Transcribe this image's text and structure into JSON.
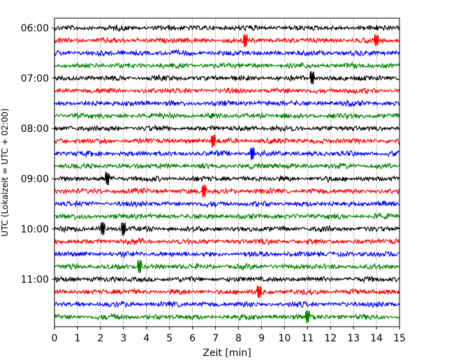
{
  "chart_data": {
    "type": "line",
    "title": "",
    "xlabel": "Zeit  [min]",
    "ylabel": "UTC (Lokalzeit = UTC + 02:00)",
    "xlim": [
      0,
      15
    ],
    "x_ticks": [
      "0",
      "1",
      "2",
      "3",
      "4",
      "5",
      "6",
      "7",
      "8",
      "9",
      "10",
      "11",
      "12",
      "13",
      "14",
      "15"
    ],
    "y_ticks": [
      "06:00",
      "07:00",
      "08:00",
      "09:00",
      "10:00",
      "11:00"
    ],
    "grid": "vertical-dotted",
    "row_interval_min": 15,
    "trace_colors": [
      "#000000",
      "#ff0000",
      "#0000ff",
      "#008000"
    ],
    "rows": [
      {
        "start": "06:00",
        "color": "#000000"
      },
      {
        "start": "06:15",
        "color": "#ff0000"
      },
      {
        "start": "06:30",
        "color": "#0000ff"
      },
      {
        "start": "06:45",
        "color": "#008000"
      },
      {
        "start": "07:00",
        "color": "#000000"
      },
      {
        "start": "07:15",
        "color": "#ff0000"
      },
      {
        "start": "07:30",
        "color": "#0000ff"
      },
      {
        "start": "07:45",
        "color": "#008000"
      },
      {
        "start": "08:00",
        "color": "#000000"
      },
      {
        "start": "08:15",
        "color": "#ff0000"
      },
      {
        "start": "08:30",
        "color": "#0000ff"
      },
      {
        "start": "08:45",
        "color": "#008000"
      },
      {
        "start": "09:00",
        "color": "#000000"
      },
      {
        "start": "09:15",
        "color": "#ff0000"
      },
      {
        "start": "09:30",
        "color": "#0000ff"
      },
      {
        "start": "09:45",
        "color": "#008000"
      },
      {
        "start": "10:00",
        "color": "#000000"
      },
      {
        "start": "10:15",
        "color": "#ff0000"
      },
      {
        "start": "10:30",
        "color": "#0000ff"
      },
      {
        "start": "10:45",
        "color": "#008000"
      },
      {
        "start": "11:00",
        "color": "#000000"
      },
      {
        "start": "11:15",
        "color": "#ff0000"
      },
      {
        "start": "11:30",
        "color": "#0000ff"
      },
      {
        "start": "11:45",
        "color": "#008000"
      }
    ],
    "spikes_min": [
      [],
      [
        8.3,
        14.0
      ],
      [],
      [],
      [
        11.2
      ],
      [],
      [],
      [],
      [],
      [
        6.9
      ],
      [
        8.6
      ],
      [],
      [
        2.3
      ],
      [
        6.5
      ],
      [],
      [],
      [
        2.1,
        3.0
      ],
      [],
      [],
      [
        3.7
      ],
      [],
      [
        8.9
      ],
      [],
      [
        11.0
      ]
    ]
  }
}
